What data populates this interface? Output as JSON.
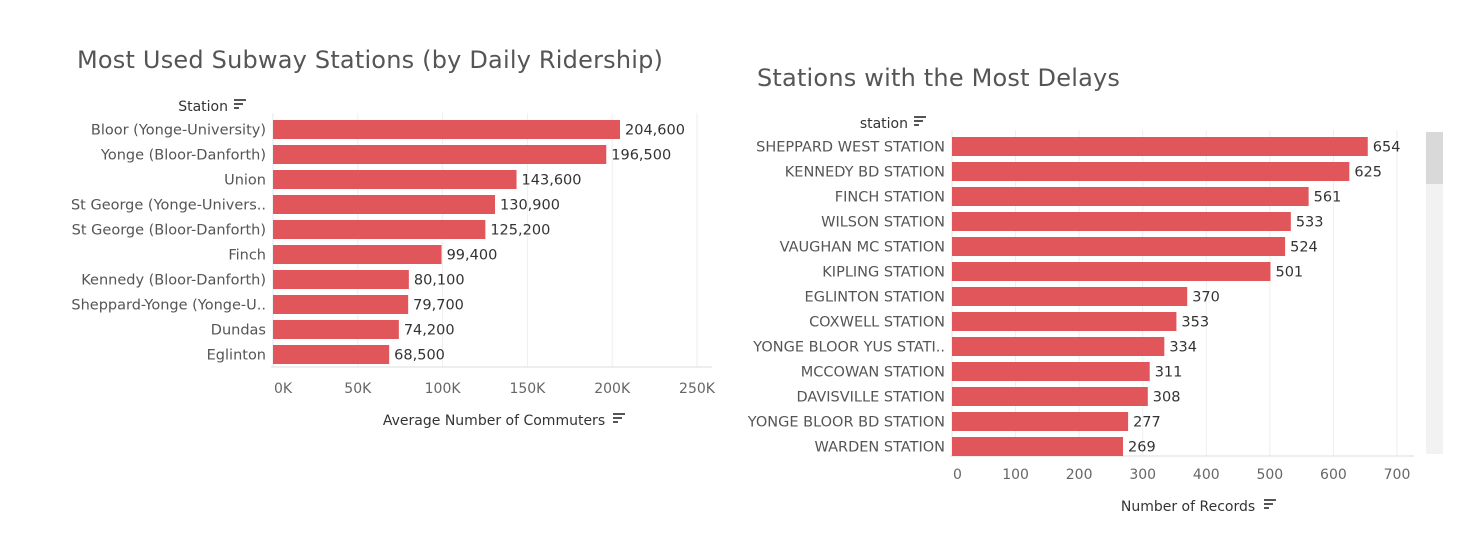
{
  "chart_data": [
    {
      "type": "bar",
      "orientation": "horizontal",
      "title": "Most Used Subway Stations (by Daily Ridership)",
      "categories_header": "Station",
      "categories": [
        "Bloor (Yonge-University)",
        "Yonge (Bloor-Danforth)",
        "Union",
        "St George (Yonge-Univers..",
        "St George (Bloor-Danforth)",
        "Finch",
        "Kennedy (Bloor-Danforth)",
        "Sheppard-Yonge (Yonge-U..",
        "Dundas",
        "Eglinton"
      ],
      "values": [
        204600,
        196500,
        143600,
        130900,
        125200,
        99400,
        80100,
        79700,
        74200,
        68500
      ],
      "value_labels": [
        "204,600",
        "196,500",
        "143,600",
        "130,900",
        "125,200",
        "99,400",
        "80,100",
        "79,700",
        "74,200",
        "68,500"
      ],
      "xlabel": "Average Number of Commuters",
      "xlim": [
        0,
        250000
      ],
      "xticks": [
        0,
        50000,
        100000,
        150000,
        200000,
        250000
      ],
      "xtick_labels": [
        "0K",
        "50K",
        "100K",
        "150K",
        "200K",
        "250K"
      ],
      "bar_color": "#e0565b",
      "grid": true
    },
    {
      "type": "bar",
      "orientation": "horizontal",
      "title": "Stations with the Most Delays",
      "categories_header": "station",
      "categories": [
        "SHEPPARD WEST STATION",
        "KENNEDY BD STATION",
        "FINCH STATION",
        "WILSON STATION",
        "VAUGHAN MC STATION",
        "KIPLING STATION",
        "EGLINTON STATION",
        "COXWELL STATION",
        "YONGE BLOOR YUS STATI..",
        "MCCOWAN STATION",
        "DAVISVILLE STATION",
        "YONGE BLOOR BD STATION",
        "WARDEN STATION"
      ],
      "values": [
        654,
        625,
        561,
        533,
        524,
        501,
        370,
        353,
        334,
        311,
        308,
        277,
        269
      ],
      "value_labels": [
        "654",
        "625",
        "561",
        "533",
        "524",
        "501",
        "370",
        "353",
        "334",
        "311",
        "308",
        "277",
        "269"
      ],
      "xlabel": "Number of Records",
      "xlim": [
        0,
        700
      ],
      "xticks": [
        0,
        100,
        200,
        300,
        400,
        500,
        600,
        700
      ],
      "xtick_labels": [
        "0",
        "100",
        "200",
        "300",
        "400",
        "500",
        "600",
        "700"
      ],
      "bar_color": "#e0565b",
      "grid": true
    }
  ]
}
